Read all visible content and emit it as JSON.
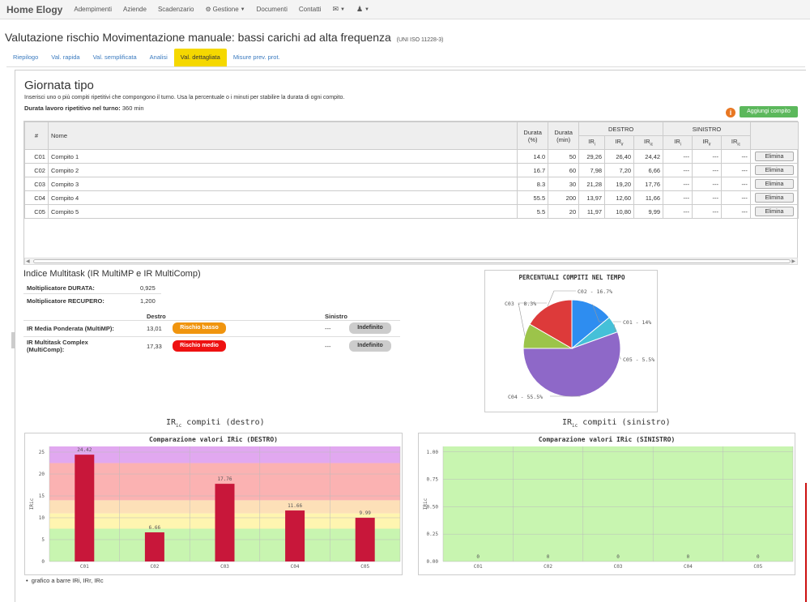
{
  "navbar": {
    "brand": "Home Elogy",
    "items": [
      "Adempimenti",
      "Aziende",
      "Scadenzario",
      "Gestione",
      "Documenti",
      "Contatti"
    ],
    "gear_icon": "gear-icon",
    "mail_icon": "envelope-icon",
    "user_icon": "user-icon"
  },
  "page": {
    "title": "Valutazione rischio Movimentazione manuale: bassi carichi ad alta frequenza",
    "norm": "(UNI ISO 11228-3)"
  },
  "tabs": [
    {
      "label": "Riepilogo",
      "active": false
    },
    {
      "label": "Val. rapida",
      "active": false
    },
    {
      "label": "Val. semplificata",
      "active": false
    },
    {
      "label": "Analisi",
      "active": false
    },
    {
      "label": "Val. dettagliata",
      "active": true
    },
    {
      "label": "Misure prev. prot.",
      "active": false
    }
  ],
  "giornata": {
    "title": "Giornata tipo",
    "intro": "Inserisci uno o più compiti ripetitivi che compongono il turno. Usa la percentuale o i minuti per stabilire la durata di ogni compito.",
    "duration_label": "Durata lavoro ripetitivo nel turno:",
    "duration_value": "360 min",
    "add_button": "Aggiungi compito"
  },
  "table": {
    "headers": {
      "hash": "#",
      "name": "Nome",
      "dur_pct_1": "Durata",
      "dur_pct_2": "(%)",
      "dur_min_1": "Durata",
      "dur_min_2": "(min)",
      "destro": "DESTRO",
      "sinistro": "SINISTRO",
      "ir": "IR",
      "ir_sub": "i",
      "irr": "IR",
      "irr_sub": "ir",
      "iric": "IR",
      "iric_sub": "ic"
    },
    "rows": [
      {
        "id": "C01",
        "name": "Compito 1",
        "pct": "14.0",
        "min": "50",
        "d1": "29,26",
        "d2": "26,40",
        "d3": "24,42",
        "s1": "---",
        "s2": "---",
        "s3": "---"
      },
      {
        "id": "C02",
        "name": "Compito 2",
        "pct": "16.7",
        "min": "60",
        "d1": "7,98",
        "d2": "7,20",
        "d3": "6,66",
        "s1": "---",
        "s2": "---",
        "s3": "---"
      },
      {
        "id": "C03",
        "name": "Compito 3",
        "pct": "8.3",
        "min": "30",
        "d1": "21,28",
        "d2": "19,20",
        "d3": "17,76",
        "s1": "---",
        "s2": "---",
        "s3": "---"
      },
      {
        "id": "C04",
        "name": "Compito 4",
        "pct": "55.5",
        "min": "200",
        "d1": "13,97",
        "d2": "12,60",
        "d3": "11,66",
        "s1": "---",
        "s2": "---",
        "s3": "---"
      },
      {
        "id": "C05",
        "name": "Compito 5",
        "pct": "5.5",
        "min": "20",
        "d1": "11,97",
        "d2": "10,80",
        "d3": "9,99",
        "s1": "---",
        "s2": "---",
        "s3": "---"
      }
    ],
    "delete_label": "Elimina"
  },
  "multitask": {
    "title": "Indice Multitask (IR MultiMP e IR MultiComp)",
    "mult_durata_label": "Moltiplicatore DURATA:",
    "mult_durata_value": "0,925",
    "mult_recupero_label": "Moltiplicatore RECUPERO:",
    "mult_recupero_value": "1,200",
    "destro_label": "Destro",
    "sinistro_label": "Sinistro",
    "multimp_label": "IR Media Ponderata (MultiMP):",
    "multimp_destro": "13,01",
    "multimp_destro_badge": "Rischio basso",
    "multimp_sinistro": "---",
    "multimp_sinistro_badge": "Indefinito",
    "multicomp_label_1": "IR Multitask Complex",
    "multicomp_label_2": "(MultiComp):",
    "multicomp_destro": "17,33",
    "multicomp_destro_badge": "Rischio medio",
    "multicomp_sinistro": "---",
    "multicomp_sinistro_badge": "Indefinito",
    "colors": {
      "basso": "#f0950f",
      "medio": "#ee1111",
      "indefinito": "#cccccc"
    }
  },
  "chart_data": [
    {
      "type": "pie",
      "title": "PERCENTUALI COMPITI NEL TEMPO",
      "slices": [
        {
          "label": "C01 - 14%",
          "value": 14.0,
          "color": "#2e8df0"
        },
        {
          "label": "C05 - 5.5%",
          "value": 5.5,
          "color": "#45c0d8"
        },
        {
          "label": "C04 - 55.5%",
          "value": 55.5,
          "color": "#8e68c8"
        },
        {
          "label": "C03 - 8.3%",
          "value": 8.3,
          "color": "#9cc44a"
        },
        {
          "label": "C02 - 16.7%",
          "value": 16.7,
          "color": "#dd3a3a"
        }
      ]
    },
    {
      "type": "bar",
      "heading": "IR",
      "heading_sub": "ic",
      "heading_rest": " compiti (destro)",
      "title": "Comparazione valori IRic (DESTRO)",
      "ylabel": "IRic",
      "categories": [
        "C01",
        "C02",
        "C03",
        "C04",
        "C05"
      ],
      "values": [
        24.42,
        6.66,
        17.76,
        11.66,
        9.99
      ],
      "value_labels": [
        "24.42",
        "6.66",
        "17.76",
        "11.66",
        "9.99"
      ],
      "ylim": [
        0,
        26.3
      ],
      "yticks": [
        0,
        5,
        10,
        15,
        20,
        25
      ],
      "bands": [
        {
          "from": 0,
          "to": 7.5,
          "color": "#c8f5b0"
        },
        {
          "from": 7.5,
          "to": 11,
          "color": "#fff5b0"
        },
        {
          "from": 11,
          "to": 14,
          "color": "#fde0b8"
        },
        {
          "from": 14,
          "to": 22.5,
          "color": "#fbb2b2"
        },
        {
          "from": 22.5,
          "to": 26.3,
          "color": "#e1a8f0"
        }
      ],
      "bar_color": "#c8173a"
    },
    {
      "type": "bar",
      "heading": "IR",
      "heading_sub": "ic",
      "heading_rest": " compiti (sinistro)",
      "title": "Comparazione valori IRic (SINISTRO)",
      "ylabel": "IRic",
      "categories": [
        "C01",
        "C02",
        "C03",
        "C04",
        "C05"
      ],
      "values": [
        0,
        0,
        0,
        0,
        0
      ],
      "value_labels": [
        "0",
        "0",
        "0",
        "0",
        "0"
      ],
      "ylim": [
        0,
        1.05
      ],
      "yticks": [
        "0.00",
        "0.25",
        "0.50",
        "0.75",
        "1.00"
      ],
      "bands": [
        {
          "from": 0,
          "to": 1.05,
          "color": "#c8f5b0"
        }
      ],
      "bar_color": "#c8173a"
    }
  ],
  "legend_note": "grafico a barre IRi, IRr, IRc"
}
